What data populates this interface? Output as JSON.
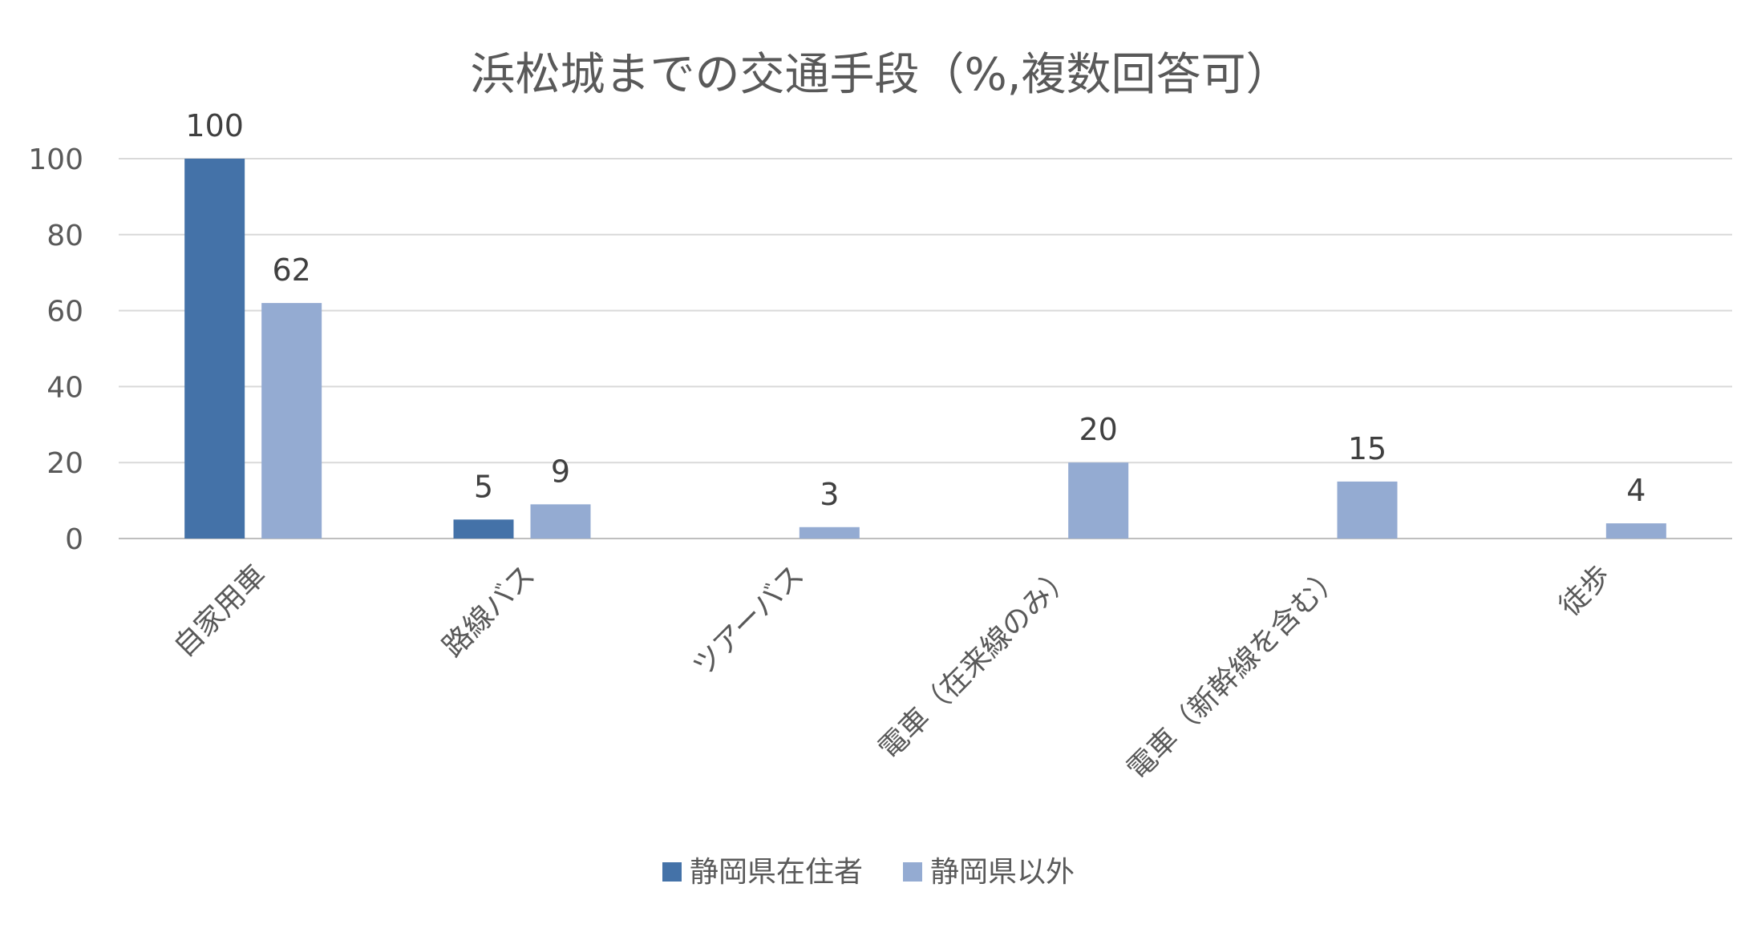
{
  "chart_data": {
    "type": "bar",
    "title": "浜松城までの交通手段（%,複数回答可）",
    "categories": [
      "自家用車",
      "路線バス",
      "ツアーバス",
      "電車（在来線のみ）",
      "電車（新幹線を含む）",
      "徒歩"
    ],
    "series": [
      {
        "name": "静岡県在住者",
        "color": "#4472a8",
        "values": [
          100,
          5,
          null,
          null,
          null,
          null
        ]
      },
      {
        "name": "静岡県以外",
        "color": "#94abd2",
        "values": [
          62,
          9,
          3,
          20,
          15,
          4
        ]
      }
    ],
    "data_labels": [
      [
        "100",
        "5",
        null,
        null,
        null,
        null
      ],
      [
        "62",
        "9",
        "3",
        "20",
        "15",
        "4"
      ]
    ],
    "xlabel": "",
    "ylabel": "",
    "ylim": [
      0,
      100
    ],
    "yticks": [
      "0",
      "20",
      "40",
      "60",
      "80",
      "100"
    ],
    "grid": true,
    "legend": "bottom"
  }
}
